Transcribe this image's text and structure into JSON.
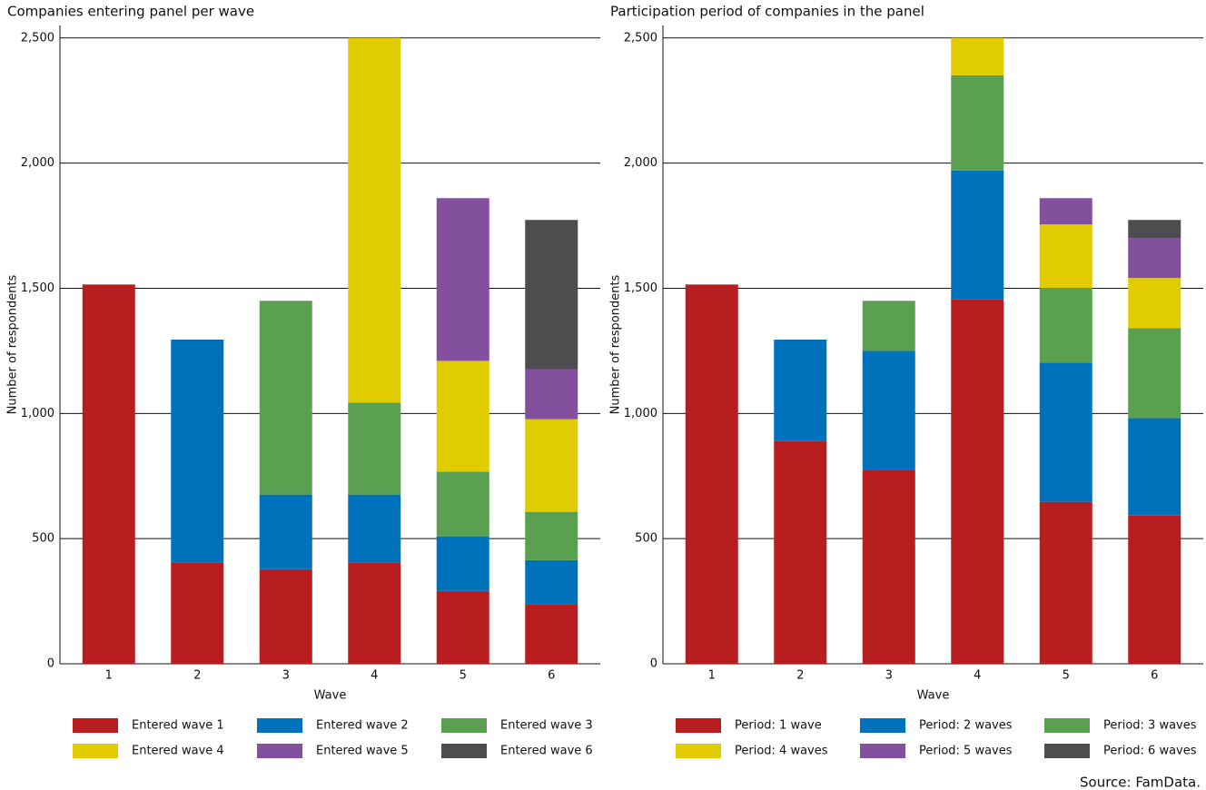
{
  "chart_data": [
    {
      "type": "stacked-bar",
      "title": "Companies entering panel per wave",
      "x_label": "Wave",
      "y_label": "Number of respondents",
      "categories": [
        "1",
        "2",
        "3",
        "4",
        "5",
        "6"
      ],
      "ylim": [
        0,
        2550
      ],
      "yticks": [
        0,
        500,
        {
          "value": 1000,
          "label": "1,000"
        },
        {
          "value": 1500,
          "label": "1,500"
        },
        {
          "value": 2000,
          "label": "2,000"
        },
        {
          "value": 2500,
          "label": "2,500"
        }
      ],
      "grid": true,
      "series": [
        {
          "name": "Entered wave 1",
          "color": "#b81d1f",
          "values": [
            1515,
            403,
            378,
            403,
            291,
            236
          ]
        },
        {
          "name": "Entered wave 2",
          "color": "#0072bb",
          "values": [
            null,
            892,
            298,
            273,
            218,
            178
          ]
        },
        {
          "name": "Entered wave 3",
          "color": "#5aa050",
          "values": [
            null,
            null,
            774,
            367,
            258,
            193
          ]
        },
        {
          "name": "Entered wave 4",
          "color": "#e0cc00",
          "values": [
            null,
            null,
            null,
            1457,
            443,
            370
          ]
        },
        {
          "name": "Entered wave 5",
          "color": "#82509c",
          "values": [
            null,
            null,
            null,
            null,
            650,
            200
          ]
        },
        {
          "name": "Entered wave 6",
          "color": "#4d4d4f",
          "values": [
            null,
            null,
            null,
            null,
            null,
            596
          ]
        }
      ]
    },
    {
      "type": "stacked-bar",
      "title": "Participation period of companies in the panel",
      "x_label": "Wave",
      "y_label": "Number of respondents",
      "categories": [
        "1",
        "2",
        "3",
        "4",
        "5",
        "6"
      ],
      "ylim": [
        0,
        2550
      ],
      "yticks": [
        0,
        500,
        {
          "value": 1000,
          "label": "1,000"
        },
        {
          "value": 1500,
          "label": "1,500"
        },
        {
          "value": 2000,
          "label": "2,000"
        },
        {
          "value": 2500,
          "label": "2,500"
        }
      ],
      "grid": true,
      "series": [
        {
          "name": "Period: 1 wave",
          "color": "#b81d1f",
          "values": [
            1515,
            890,
            774,
            1457,
            647,
            592
          ]
        },
        {
          "name": "Period: 2 waves",
          "color": "#0072bb",
          "values": [
            null,
            405,
            476,
            513,
            556,
            389
          ]
        },
        {
          "name": "Period: 3 waves",
          "color": "#5aa050",
          "values": [
            null,
            null,
            200,
            381,
            298,
            360
          ]
        },
        {
          "name": "Period: 4 waves",
          "color": "#e0cc00",
          "values": [
            null,
            null,
            null,
            149,
            254,
            200
          ]
        },
        {
          "name": "Period: 5 waves",
          "color": "#82509c",
          "values": [
            null,
            null,
            null,
            null,
            105,
            160
          ]
        },
        {
          "name": "Period: 6 waves",
          "color": "#4d4d4f",
          "values": [
            null,
            null,
            null,
            null,
            null,
            72
          ]
        }
      ]
    }
  ],
  "source": "Source: FamData."
}
